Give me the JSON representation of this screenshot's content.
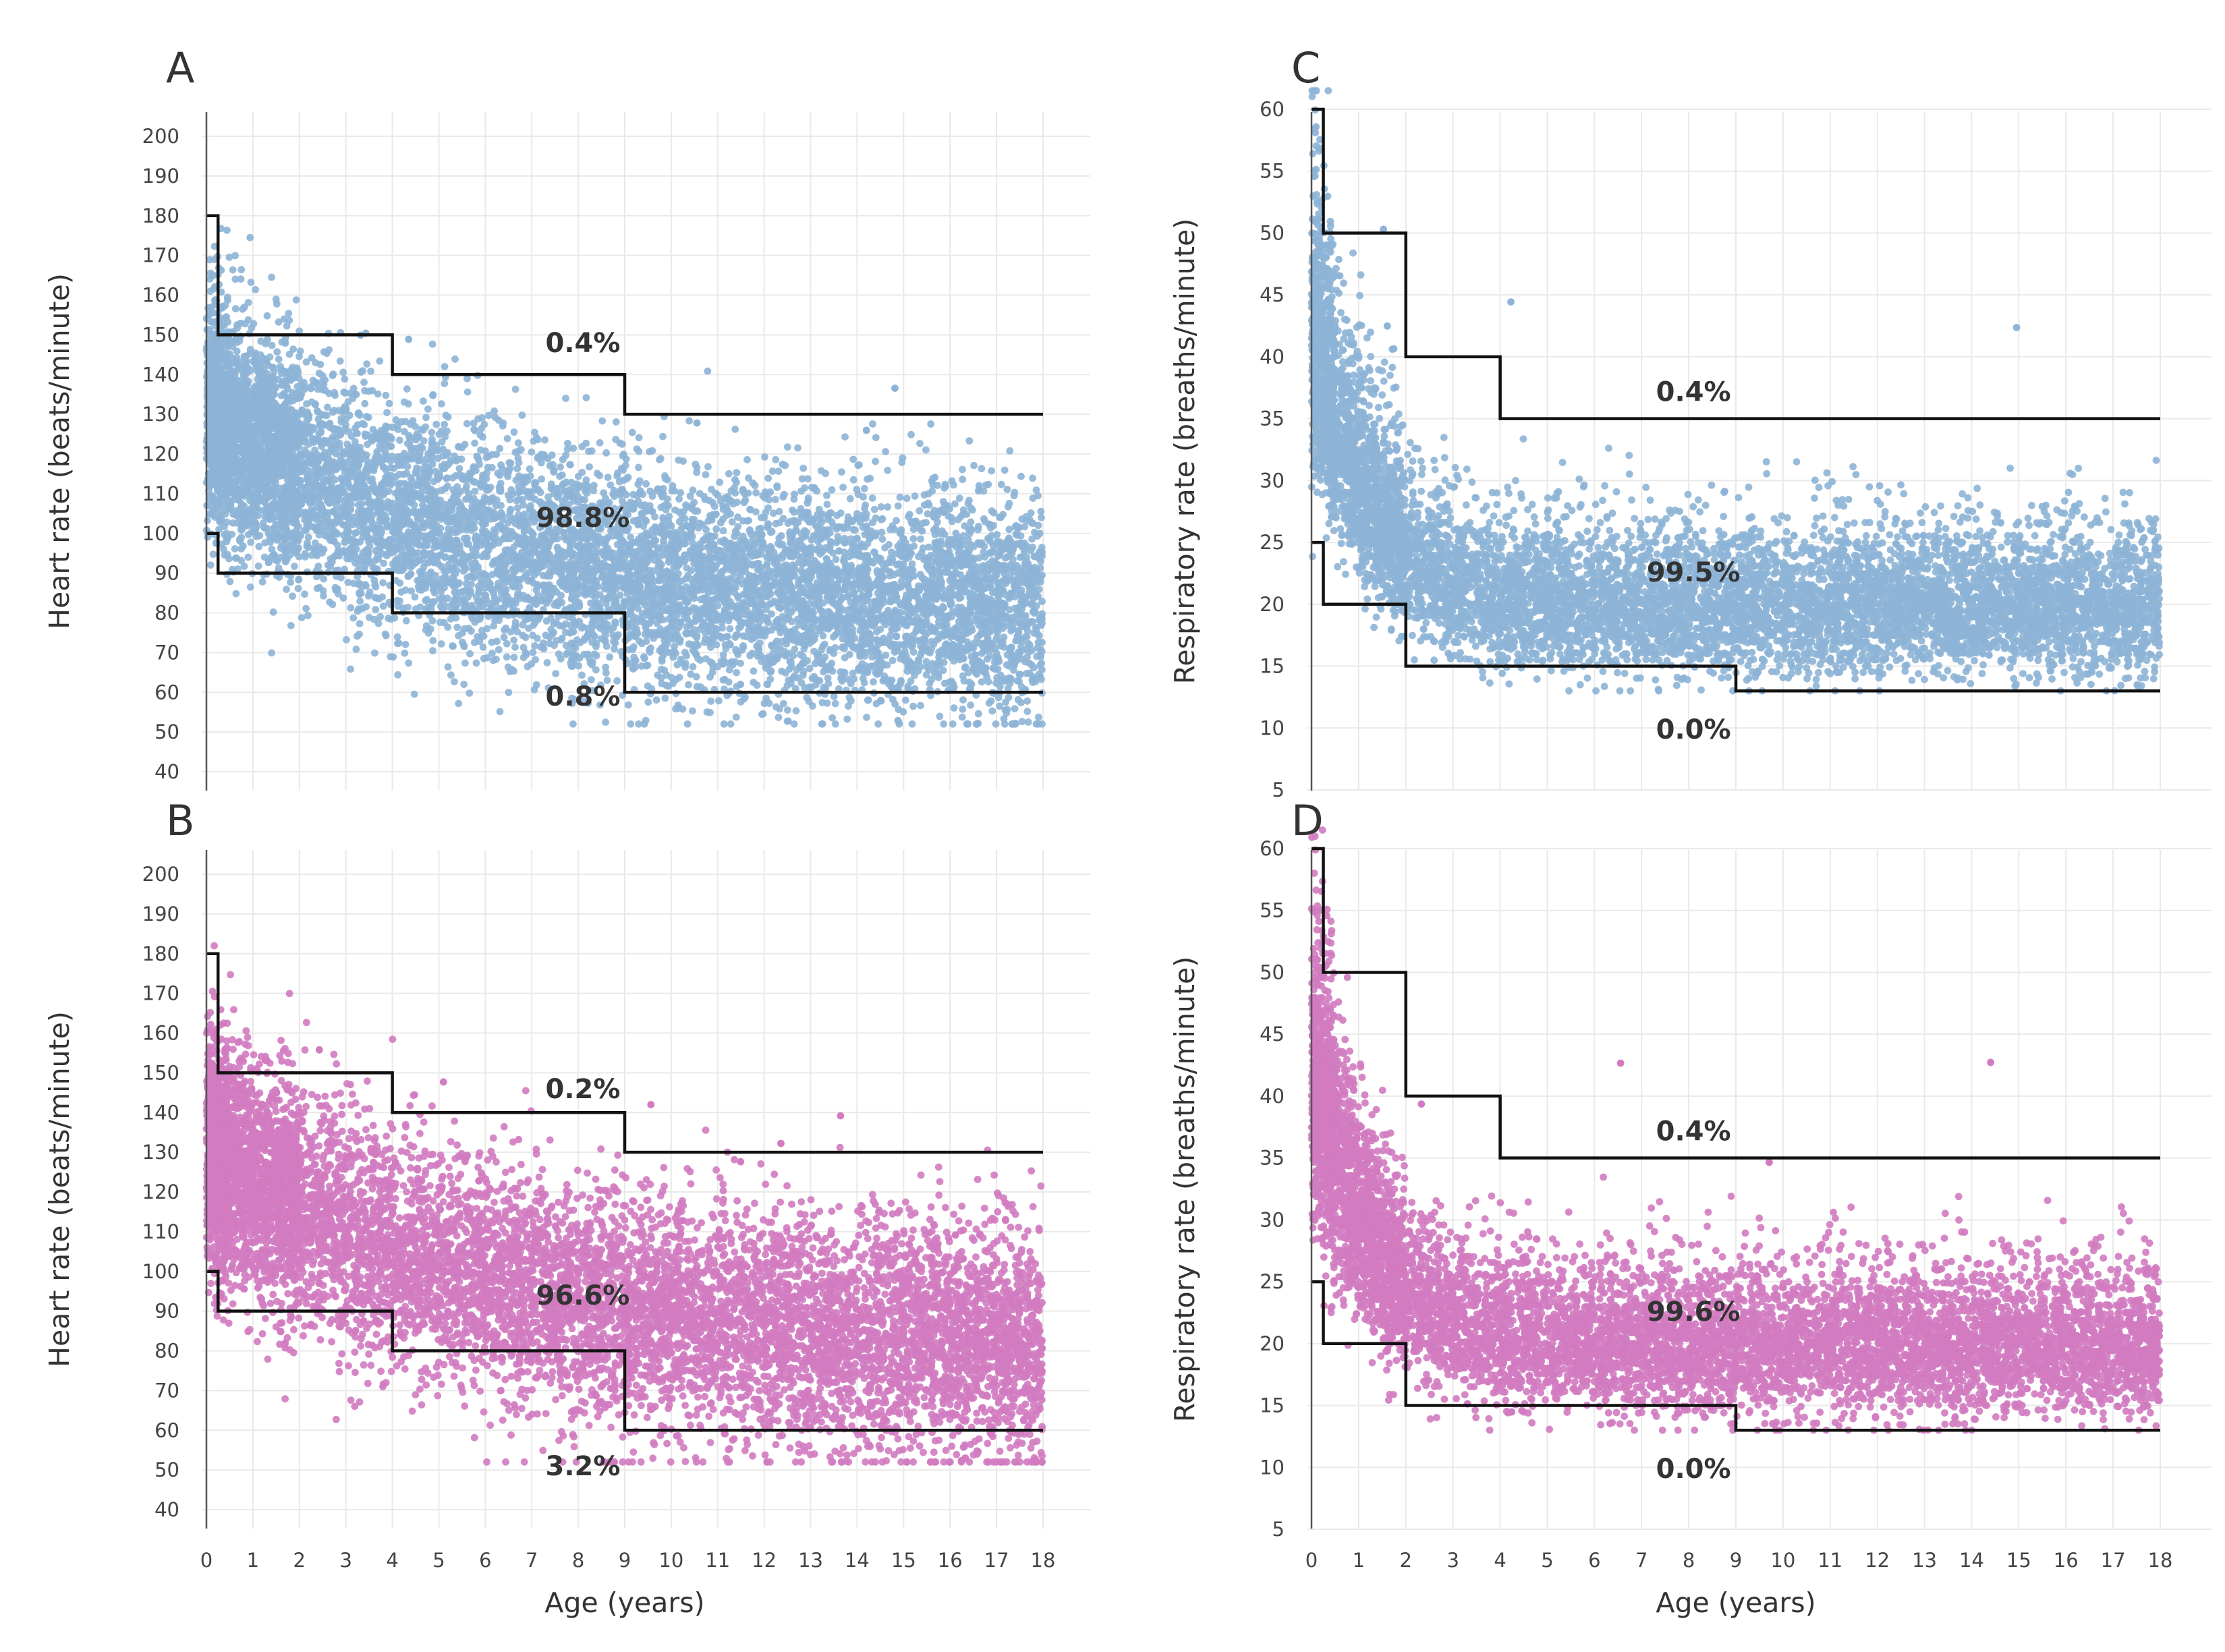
{
  "chart_data": [
    {
      "panel": "A",
      "type": "scatter",
      "ylabel": "Heart rate (beats/minute)",
      "xlabel": "",
      "xlim": [
        0,
        18
      ],
      "ylim": [
        40,
        200
      ],
      "yticks": [
        200,
        190,
        180,
        170,
        160,
        150,
        140,
        130,
        120,
        110,
        100,
        90,
        80,
        70,
        60,
        50,
        40
      ],
      "xticks": [],
      "point_color": "#8db4d6",
      "points": {
        "seed": 11,
        "count": 9000,
        "model": "hr",
        "sd": 14,
        "extreme_count": 6
      },
      "upper_threshold": {
        "x": [
          0,
          0.25,
          0.25,
          4,
          4,
          9,
          9,
          18
        ],
        "y": [
          180,
          180,
          150,
          150,
          140,
          140,
          130,
          130
        ]
      },
      "lower_threshold": {
        "x": [
          0,
          0.25,
          0.25,
          4,
          4,
          9,
          9,
          18
        ],
        "y": [
          100,
          100,
          90,
          90,
          80,
          80,
          60,
          60
        ]
      },
      "annotations": [
        {
          "text": "0.4%",
          "x": 8.1,
          "y": 148
        },
        {
          "text": "98.8%",
          "x": 8.1,
          "y": 104
        },
        {
          "text": "0.8%",
          "x": 8.1,
          "y": 59
        }
      ]
    },
    {
      "panel": "B",
      "type": "scatter",
      "ylabel": "Heart rate (beats/minute)",
      "xlabel": "Age (years)",
      "xlim": [
        0,
        18
      ],
      "ylim": [
        40,
        200
      ],
      "yticks": [
        200,
        190,
        180,
        170,
        160,
        150,
        140,
        130,
        120,
        110,
        100,
        90,
        80,
        70,
        60,
        50,
        40
      ],
      "xticks": [
        0,
        1,
        2,
        3,
        4,
        5,
        6,
        7,
        8,
        9,
        10,
        11,
        12,
        13,
        14,
        15,
        16,
        17,
        18
      ],
      "point_color": "#d27bc0",
      "points": {
        "seed": 23,
        "count": 9000,
        "model": "hr",
        "sd": 14.5,
        "extreme_count": 6
      },
      "upper_threshold": {
        "x": [
          0,
          0.25,
          0.25,
          4,
          4,
          9,
          9,
          18
        ],
        "y": [
          180,
          180,
          150,
          150,
          140,
          140,
          130,
          130
        ]
      },
      "lower_threshold": {
        "x": [
          0,
          0.25,
          0.25,
          4,
          4,
          9,
          9,
          18
        ],
        "y": [
          100,
          100,
          90,
          90,
          80,
          80,
          60,
          60
        ]
      },
      "annotations": [
        {
          "text": "0.2%",
          "x": 8.1,
          "y": 146
        },
        {
          "text": "96.6%",
          "x": 8.1,
          "y": 94
        },
        {
          "text": "3.2%",
          "x": 8.1,
          "y": 51
        }
      ]
    },
    {
      "panel": "C",
      "type": "scatter",
      "ylabel": "Respiratory rate (breaths/minute)",
      "xlabel": "",
      "xlim": [
        0,
        18
      ],
      "ylim": [
        5,
        62
      ],
      "yticks": [
        60,
        55,
        50,
        45,
        40,
        35,
        30,
        25,
        20,
        15,
        10,
        5
      ],
      "xticks": [],
      "point_color": "#8db4d6",
      "points": {
        "seed": 37,
        "count": 8000,
        "model": "rr",
        "sd": 0.15,
        "extreme_count": 4
      },
      "upper_threshold": {
        "x": [
          0,
          0.25,
          0.25,
          2,
          2,
          4,
          4,
          18
        ],
        "y": [
          60,
          60,
          50,
          50,
          40,
          40,
          35,
          35
        ]
      },
      "lower_threshold": {
        "x": [
          0,
          0.25,
          0.25,
          2,
          2,
          9,
          9,
          18
        ],
        "y": [
          25,
          25,
          20,
          20,
          15,
          15,
          13,
          13
        ]
      },
      "annotations": [
        {
          "text": "0.4%",
          "x": 8.1,
          "y": 37.2
        },
        {
          "text": "99.5%",
          "x": 8.1,
          "y": 22.6
        },
        {
          "text": "0.0%",
          "x": 8.1,
          "y": 9.9
        }
      ]
    },
    {
      "panel": "D",
      "type": "scatter",
      "ylabel": "Respiratory rate (breaths/minute)",
      "xlabel": "Age (years)",
      "xlim": [
        0,
        18
      ],
      "ylim": [
        5,
        62
      ],
      "yticks": [
        60,
        55,
        50,
        45,
        40,
        35,
        30,
        25,
        20,
        15,
        10,
        5
      ],
      "xticks": [
        0,
        1,
        2,
        3,
        4,
        5,
        6,
        7,
        8,
        9,
        10,
        11,
        12,
        13,
        14,
        15,
        16,
        17,
        18
      ],
      "point_color": "#d27bc0",
      "points": {
        "seed": 53,
        "count": 8000,
        "model": "rr",
        "sd": 0.15,
        "extreme_count": 4
      },
      "upper_threshold": {
        "x": [
          0,
          0.25,
          0.25,
          2,
          2,
          4,
          4,
          18
        ],
        "y": [
          60,
          60,
          50,
          50,
          40,
          40,
          35,
          35
        ]
      },
      "lower_threshold": {
        "x": [
          0,
          0.25,
          0.25,
          2,
          2,
          9,
          9,
          18
        ],
        "y": [
          25,
          25,
          20,
          20,
          15,
          15,
          13,
          13
        ]
      },
      "annotations": [
        {
          "text": "0.4%",
          "x": 8.1,
          "y": 37.2
        },
        {
          "text": "99.6%",
          "x": 8.1,
          "y": 22.6
        },
        {
          "text": "0.0%",
          "x": 8.1,
          "y": 9.9
        }
      ]
    }
  ]
}
